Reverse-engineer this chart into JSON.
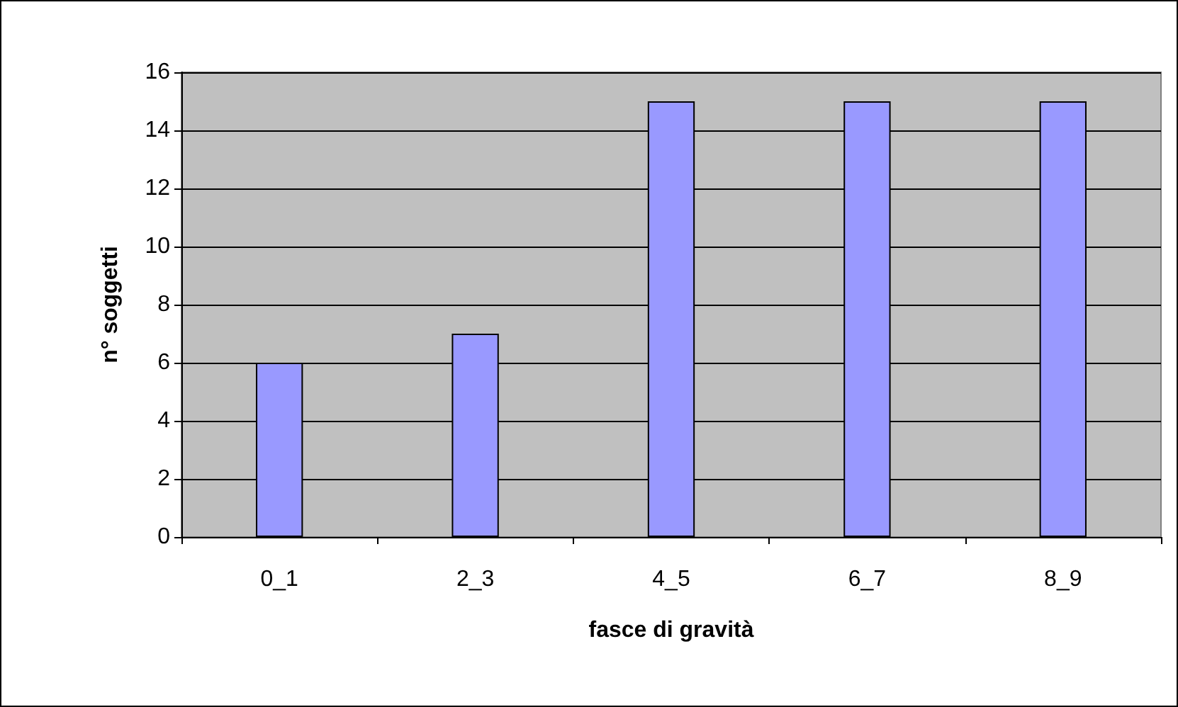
{
  "chart_data": {
    "type": "bar",
    "xlabel": "fasce di gravità",
    "ylabel": "n° soggetti",
    "categories": [
      "0_1",
      "2_3",
      "4_5",
      "6_7",
      "8_9"
    ],
    "values": [
      6,
      7,
      15,
      15,
      15
    ],
    "color": "#9999ff",
    "ylim": [
      0,
      16
    ],
    "yticks": [
      0,
      2,
      4,
      6,
      8,
      10,
      12,
      14,
      16
    ],
    "grid": "y"
  }
}
